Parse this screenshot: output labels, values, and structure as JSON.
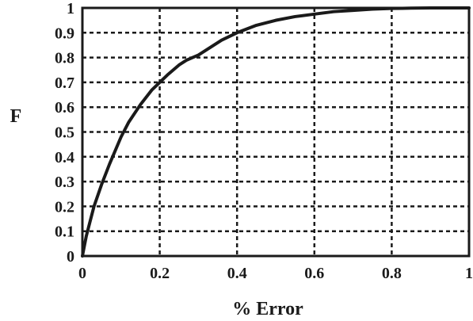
{
  "chart_data": {
    "type": "line",
    "title": "",
    "xlabel": "% Error",
    "ylabel": "F",
    "xlim": [
      0,
      1
    ],
    "ylim": [
      0,
      1
    ],
    "grid": true,
    "x_ticks": [
      "0",
      "0.2",
      "0.4",
      "0.6",
      "0.8",
      "1"
    ],
    "y_ticks": [
      "0",
      "0.1",
      "0.2",
      "0.3",
      "0.4",
      "0.5",
      "0.6",
      "0.7",
      "0.8",
      "0.9",
      "1"
    ],
    "series": [
      {
        "x": [
          0,
          0.005,
          0.01,
          0.02,
          0.03,
          0.05,
          0.07,
          0.1,
          0.12,
          0.15,
          0.18,
          0.2,
          0.22,
          0.25,
          0.27,
          0.3,
          0.33,
          0.36,
          0.4,
          0.45,
          0.5,
          0.55,
          0.6,
          0.65,
          0.7,
          0.75,
          0.8,
          0.85,
          0.9,
          1
        ],
        "y": [
          0,
          0.04,
          0.08,
          0.14,
          0.2,
          0.29,
          0.37,
          0.48,
          0.54,
          0.61,
          0.67,
          0.7,
          0.73,
          0.77,
          0.79,
          0.81,
          0.84,
          0.87,
          0.9,
          0.93,
          0.95,
          0.965,
          0.975,
          0.985,
          0.99,
          0.995,
          0.998,
          0.999,
          1,
          1
        ]
      }
    ]
  }
}
